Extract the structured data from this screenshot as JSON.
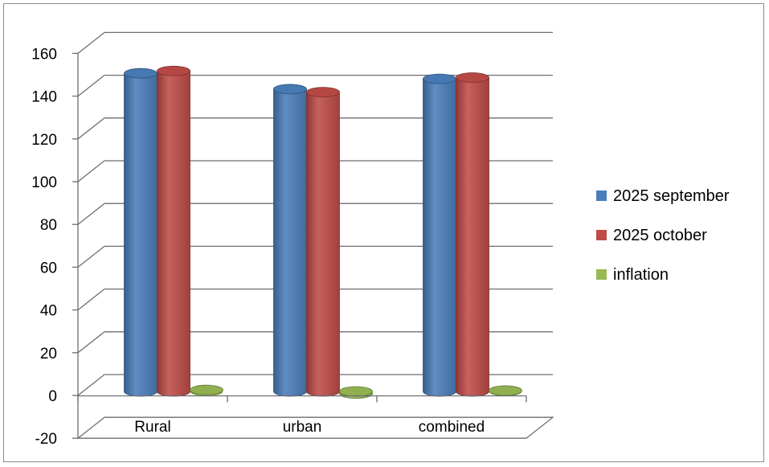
{
  "chart_data": {
    "type": "bar",
    "style": "3d-cylinder",
    "categories": [
      "Rural",
      "urban",
      "combined"
    ],
    "series": [
      {
        "name": "2025 september",
        "color": "#4a7ebb",
        "values": [
          148.8,
          141.4,
          146.2
        ]
      },
      {
        "name": "2025 october",
        "color": "#be4b48",
        "values": [
          149.9,
          140.0,
          146.8
        ]
      },
      {
        "name": "inflation",
        "color": "#98b954",
        "values": [
          0.7,
          -1.0,
          0.4
        ]
      }
    ],
    "ylim": [
      -20,
      160
    ],
    "ytick_step": 20,
    "grid": true,
    "legend_position": "right",
    "title": "",
    "xlabel": "",
    "ylabel": ""
  }
}
